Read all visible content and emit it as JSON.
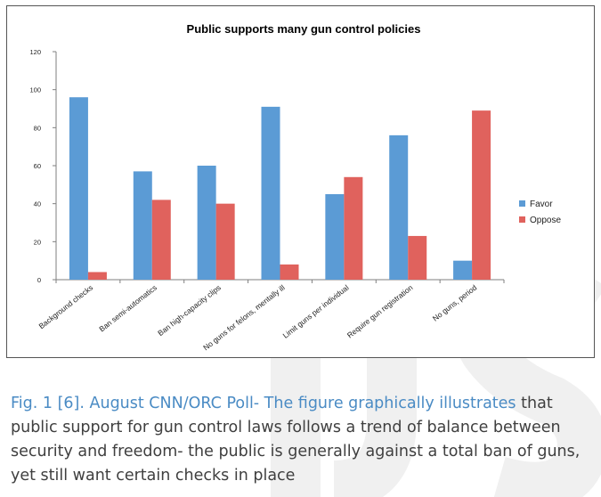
{
  "chart_data": {
    "type": "bar",
    "title": "Public supports many gun control policies",
    "categories": [
      "Background checks",
      "Ban semi-automatics",
      "Ban high-capacity clips",
      "No guns for felons, mentally ill",
      "Limit guns per individual",
      "Require gun registration",
      "No guns, period"
    ],
    "series": [
      {
        "name": "Favor",
        "color": "#5b9bd5",
        "values": [
          96,
          57,
          60,
          91,
          45,
          76,
          10
        ]
      },
      {
        "name": "Oppose",
        "color": "#e0625d",
        "values": [
          4,
          42,
          40,
          8,
          54,
          23,
          89
        ]
      }
    ],
    "ylim": [
      0,
      120
    ],
    "yticks": [
      0,
      20,
      40,
      60,
      80,
      100,
      120
    ],
    "xlabel": "",
    "ylabel": "",
    "grid": false,
    "legend": "right"
  },
  "caption": {
    "lead": "Fig. 1 [6]. August CNN/ORC Poll- The figure graphically illustrates",
    "rest": "that public support for gun control laws follows a trend of balance between security and freedom-  the public is generally against a total ban of guns, yet still want certain checks in place"
  },
  "watermark": {
    "text": "IJS",
    "color": "#f2f2f2"
  }
}
